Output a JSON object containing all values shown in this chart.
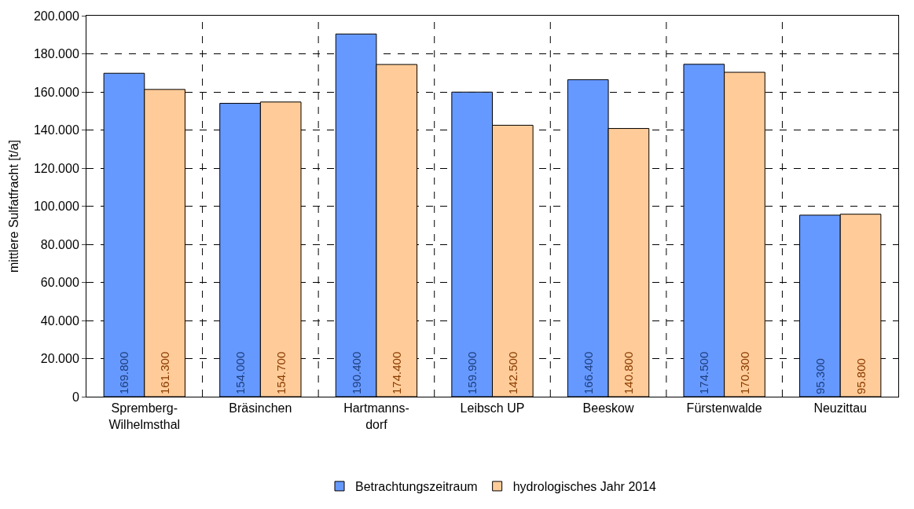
{
  "chart_data": {
    "type": "bar",
    "ylabel": "mittlere Sulfatfracht [t/a]",
    "categories": [
      "Spremberg-\nWilhelmsthal",
      "Bräsinchen",
      "Hartmanns-\ndorf",
      "Leibsch UP",
      "Beeskow",
      "Fürstenwalde",
      "Neuzittau"
    ],
    "series": [
      {
        "name": "Betrachtungszeitraum",
        "color": "#6699ff",
        "values": [
          169800,
          154000,
          190400,
          159900,
          166400,
          174500,
          95300
        ],
        "value_labels": [
          "169.800",
          "154.000",
          "190.400",
          "159.900",
          "166.400",
          "174.500",
          "95.300"
        ]
      },
      {
        "name": "hydrologisches Jahr 2014",
        "color": "#ffcc99",
        "values": [
          161300,
          154700,
          174400,
          142500,
          140800,
          170300,
          95800
        ],
        "value_labels": [
          "161.300",
          "154.700",
          "174.400",
          "142.500",
          "140.800",
          "170.300",
          "95.800"
        ]
      }
    ],
    "ylim": [
      0,
      200000
    ],
    "yticks": [
      0,
      {
        "value": 20000,
        "label": "20.000"
      },
      {
        "value": 40000,
        "label": "40.000"
      },
      {
        "value": 60000,
        "label": "60.000"
      },
      {
        "value": 80000,
        "label": "80.000"
      },
      {
        "value": 100000,
        "label": "100.000"
      },
      {
        "value": 120000,
        "label": "120.000"
      },
      {
        "value": 140000,
        "label": "140.000"
      },
      {
        "value": 160000,
        "label": "160.000"
      },
      {
        "value": 180000,
        "label": "180.000"
      },
      {
        "value": 200000,
        "label": "200.000"
      }
    ],
    "grid": true,
    "line_style": "dashed",
    "legend": "bottom"
  }
}
